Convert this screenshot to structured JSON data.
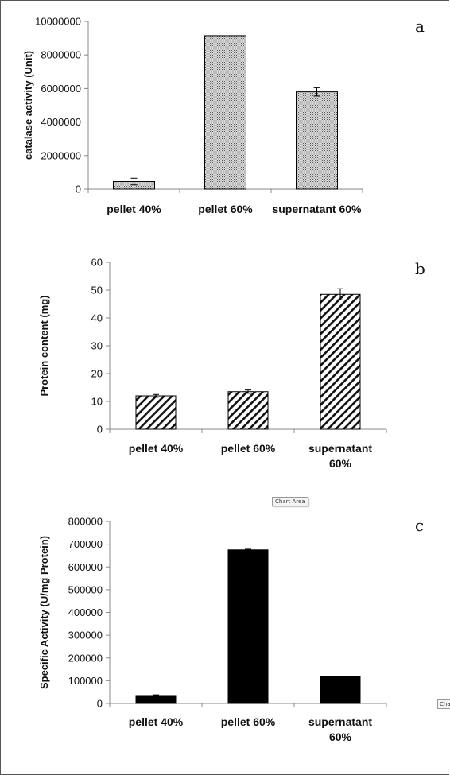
{
  "chart_data": [
    {
      "type": "bar",
      "panel_label": "a",
      "ylabel": "catalase activity (Unit)",
      "categories": [
        "pellet 40%",
        "pellet 60%",
        "supernatant 60%"
      ],
      "category_lines": [
        [
          "pellet 40%"
        ],
        [
          "pellet 60%"
        ],
        [
          "supernatant 60%"
        ]
      ],
      "values": [
        450000,
        9150000,
        5800000
      ],
      "errors": [
        200000,
        0,
        250000
      ],
      "ylim": [
        0,
        10000000
      ],
      "yticks": [
        0,
        2000000,
        4000000,
        6000000,
        8000000,
        10000000
      ],
      "ytick_labels": [
        "0",
        "2000000",
        "4000000",
        "6000000",
        "8000000",
        "10000000"
      ],
      "fill": "dotted",
      "grid": false
    },
    {
      "type": "bar",
      "panel_label": "b",
      "ylabel": "Protein content (mg)",
      "categories": [
        "pellet 40%",
        "pellet 60%",
        "supernatant 60%"
      ],
      "category_lines": [
        [
          "pellet 40%"
        ],
        [
          "pellet 60%"
        ],
        [
          "supernatant",
          "60%"
        ]
      ],
      "values": [
        12,
        13.5,
        48.5
      ],
      "errors": [
        0.5,
        0.6,
        2
      ],
      "ylim": [
        0,
        60
      ],
      "yticks": [
        0,
        10,
        20,
        30,
        40,
        50,
        60
      ],
      "ytick_labels": [
        "0",
        "10",
        "20",
        "30",
        "40",
        "50",
        "60"
      ],
      "fill": "hatched",
      "grid": false
    },
    {
      "type": "bar",
      "panel_label": "c",
      "ylabel": "Specific Activity (U/mg Protein)",
      "categories": [
        "pellet 40%",
        "pellet 60%",
        "supernatant 60%"
      ],
      "category_lines": [
        [
          "pellet 40%"
        ],
        [
          "pellet 60%"
        ],
        [
          "supernatant",
          "60%"
        ]
      ],
      "values": [
        35000,
        675000,
        120000
      ],
      "errors": [
        3000,
        3000,
        0
      ],
      "ylim": [
        0,
        800000
      ],
      "yticks": [
        0,
        100000,
        200000,
        300000,
        400000,
        500000,
        600000,
        700000,
        800000
      ],
      "ytick_labels": [
        "0",
        "100000",
        "200000",
        "300000",
        "400000",
        "500000",
        "600000",
        "700000",
        "800000"
      ],
      "fill": "solid",
      "grid": false
    }
  ],
  "overlay": {
    "chart_area_tip": "Chart Area",
    "clipped_tip": "Cha"
  }
}
